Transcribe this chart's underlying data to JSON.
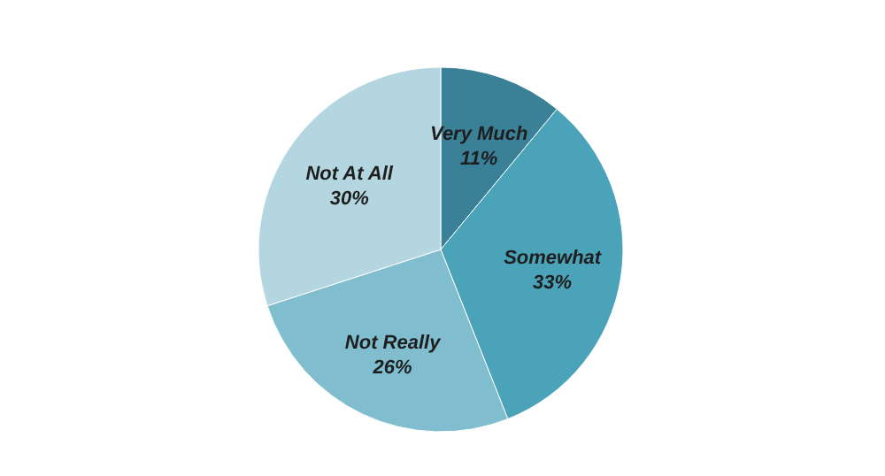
{
  "chart_data": {
    "type": "pie",
    "categories": [
      "Very Much",
      "Somewhat",
      "Not Really",
      "Not At All"
    ],
    "values": [
      11,
      33,
      26,
      30
    ],
    "colors": [
      "#3a8197",
      "#4aa3b9",
      "#7fbdcf",
      "#b4d6e1"
    ],
    "value_labels": [
      "11%",
      "33%",
      "26%",
      "30%"
    ]
  }
}
